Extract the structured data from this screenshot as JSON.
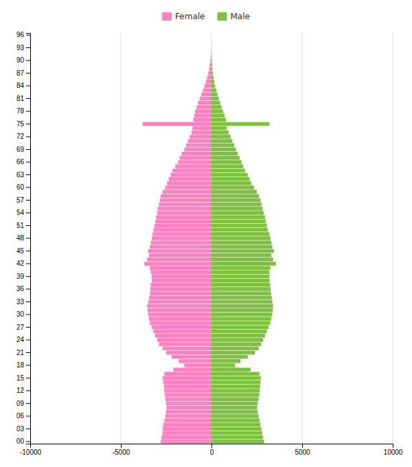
{
  "chart_data": {
    "type": "bar",
    "orientation": "horizontal",
    "grid": true,
    "legend": "top",
    "categories": [
      "00",
      null,
      null,
      "03",
      null,
      null,
      "06",
      null,
      null,
      "09",
      null,
      null,
      "12",
      null,
      null,
      "15",
      null,
      null,
      "18",
      null,
      null,
      "21",
      null,
      null,
      "24",
      null,
      null,
      "27",
      null,
      null,
      "30",
      null,
      null,
      "33",
      null,
      null,
      "36",
      null,
      null,
      "39",
      null,
      null,
      "42",
      null,
      null,
      "45",
      null,
      null,
      "48",
      null,
      null,
      "51",
      null,
      null,
      "54",
      null,
      null,
      "57",
      null,
      null,
      "60",
      null,
      null,
      "63",
      null,
      null,
      "66",
      null,
      null,
      "69",
      null,
      null,
      "72",
      null,
      null,
      "75",
      null,
      null,
      "78",
      null,
      null,
      "81",
      null,
      null,
      "84",
      null,
      null,
      "87",
      null,
      null,
      "90",
      null,
      null,
      "93",
      null,
      null,
      "96"
    ],
    "series": [
      {
        "name": "Female",
        "color": "#ff80c0",
        "values": [
          -2800,
          -2750,
          -2700,
          -2700,
          -2650,
          -2600,
          -2550,
          -2500,
          -2480,
          -2500,
          -2550,
          -2580,
          -2600,
          -2620,
          -2650,
          -2700,
          -2600,
          -2100,
          -1500,
          -1800,
          -2200,
          -2500,
          -2700,
          -2900,
          -3000,
          -3100,
          -3200,
          -3300,
          -3400,
          -3450,
          -3500,
          -3520,
          -3550,
          -3480,
          -3450,
          -3400,
          -3380,
          -3350,
          -3300,
          -3300,
          -3350,
          -3400,
          -3700,
          -3550,
          -3450,
          -3500,
          -3400,
          -3350,
          -3300,
          -3250,
          -3200,
          -3150,
          -3100,
          -3050,
          -3000,
          -2950,
          -2900,
          -2850,
          -2800,
          -2700,
          -2550,
          -2450,
          -2350,
          -2250,
          -2150,
          -2000,
          -1850,
          -1750,
          -1650,
          -1500,
          -1400,
          -1300,
          -1200,
          -1100,
          -1050,
          -3800,
          -1000,
          -950,
          -900,
          -820,
          -740,
          -650,
          -560,
          -470,
          -390,
          -310,
          -240,
          -180,
          -130,
          -90,
          -60,
          -35,
          -20,
          -10,
          -5,
          -2,
          -1
        ]
      },
      {
        "name": "Male",
        "color": "#80c040",
        "values": [
          2900,
          2850,
          2800,
          2750,
          2700,
          2650,
          2600,
          2550,
          2520,
          2550,
          2600,
          2640,
          2660,
          2680,
          2700,
          2720,
          2650,
          2150,
          1300,
          1600,
          2000,
          2400,
          2600,
          2750,
          2850,
          2950,
          3050,
          3150,
          3250,
          3300,
          3350,
          3380,
          3400,
          3360,
          3320,
          3280,
          3260,
          3240,
          3200,
          3200,
          3200,
          3250,
          3550,
          3400,
          3300,
          3450,
          3350,
          3300,
          3250,
          3200,
          3100,
          3050,
          3000,
          2950,
          2880,
          2820,
          2760,
          2700,
          2620,
          2500,
          2350,
          2200,
          2100,
          2000,
          1850,
          1750,
          1650,
          1550,
          1450,
          1350,
          1250,
          1150,
          1050,
          950,
          850,
          3200,
          800,
          720,
          640,
          560,
          480,
          400,
          330,
          260,
          200,
          150,
          110,
          80,
          55,
          35,
          20,
          12,
          7,
          4,
          2,
          1,
          0
        ]
      }
    ],
    "xlim": [
      -10000,
      10000
    ],
    "xticks": [
      -10000,
      -5000,
      0,
      5000,
      10000
    ]
  }
}
